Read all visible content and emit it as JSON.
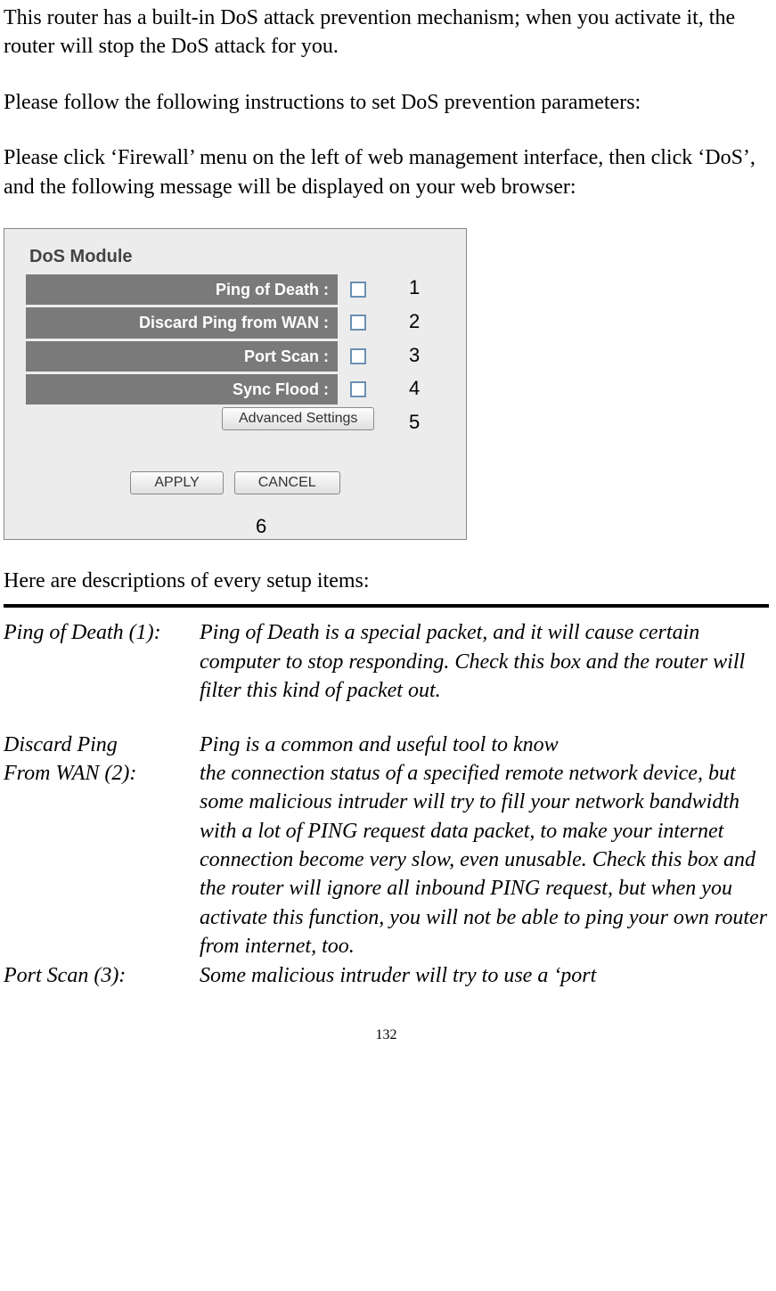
{
  "intro": {
    "p1": "This router has a built-in DoS attack prevention mechanism; when you activate it, the router will stop the DoS attack for you.",
    "p2": "Please follow the following instructions to set DoS prevention parameters:",
    "p3": "Please click ‘Firewall’ menu on the left of web management interface, then click ‘DoS’, and the following message will be displayed on your web browser:"
  },
  "panel": {
    "title": "DoS Module",
    "rows": [
      {
        "label": "Ping of Death :"
      },
      {
        "label": "Discard Ping from WAN :"
      },
      {
        "label": "Port Scan :"
      },
      {
        "label": "Sync Flood :"
      }
    ],
    "advanced": "Advanced Settings",
    "apply": "APPLY",
    "cancel": "CANCEL",
    "colors": {
      "panel_bg": "#ececec",
      "row_bg": "#7a7a7a",
      "row_text": "#ffffff",
      "checkbox_border": "#6b8fb3",
      "button_border": "#8a8a8a"
    }
  },
  "callouts": {
    "c1": "1",
    "c2": "2",
    "c3": "3",
    "c4": "4",
    "c5": "5",
    "c6": "6"
  },
  "desc": {
    "intro": "Here are descriptions of every setup items:",
    "items": [
      {
        "key": "Ping of Death (1):",
        "val": "Ping of Death is a special packet, and it will cause certain computer to stop responding. Check this box and the router will filter this kind of packet out."
      },
      {
        "key1": "Discard Ping",
        "key2": "From WAN (2):",
        "val1": "Ping is a common and useful tool to know",
        "val2": "the connection status of a specified remote network device, but some malicious intruder will try to fill your network bandwidth with a lot of PING request data packet, to make your internet connection become very slow, even unusable. Check this box and the router will ignore all inbound PING request, but when you activate this function, you will not be able to ping your own router from internet, too."
      },
      {
        "key": "Port Scan (3):",
        "val": "Some malicious intruder will try to use a ‘port"
      }
    ]
  },
  "page_number": "132"
}
